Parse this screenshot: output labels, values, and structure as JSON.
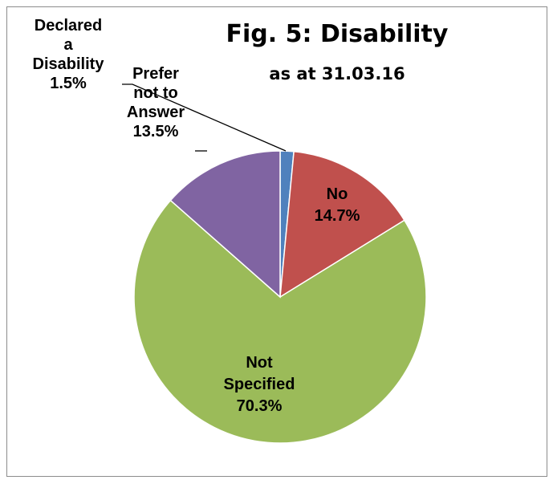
{
  "chart_data": {
    "type": "pie",
    "title": "Fig. 5: Disability",
    "subtitle": "as at 31.03.16",
    "slices": [
      {
        "label": "Declared a Disability",
        "label_lines": [
          "Declared",
          "a",
          "Disability",
          "1.5%"
        ],
        "value": 1.5,
        "color": "#4f81bd"
      },
      {
        "label": "No",
        "label_lines": [
          "No",
          "14.7%"
        ],
        "value": 14.7,
        "color": "#c0504d"
      },
      {
        "label": "Not Specified",
        "label_lines": [
          "Not",
          "Specified",
          "70.3%"
        ],
        "value": 70.3,
        "color": "#9bbb59"
      },
      {
        "label": "Prefer not to Answer",
        "label_lines": [
          "Prefer",
          "not to",
          "Answer",
          "13.5%"
        ],
        "value": 13.5,
        "color": "#8064a2"
      }
    ]
  }
}
